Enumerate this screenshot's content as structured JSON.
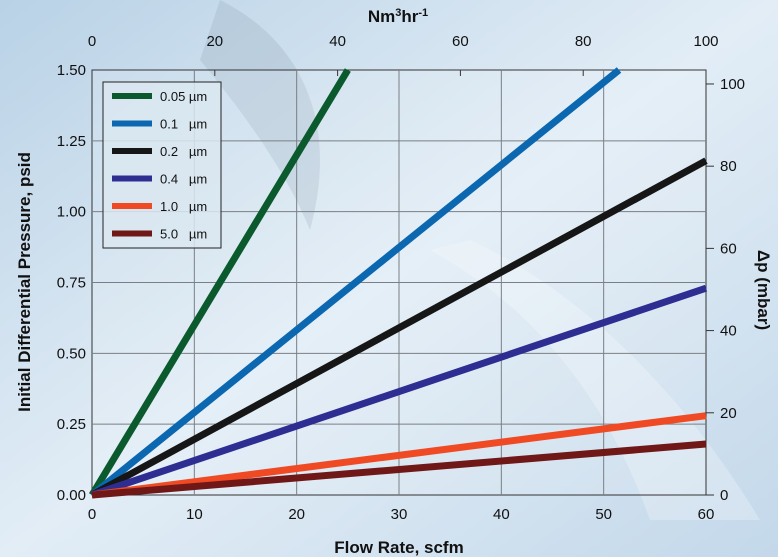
{
  "chart_data": {
    "type": "line",
    "xlabel": "Flow Rate, scfm",
    "ylabel": "Initial Differential Pressure, psid",
    "top_axis_label": {
      "base": "Nm",
      "sup1": "3",
      "mid": "hr",
      "sup2": "-1"
    },
    "right_axis_label": "Δp (mbar)",
    "xlim": [
      0,
      60
    ],
    "ylim": [
      0,
      1.5
    ],
    "x_ticks": [
      "0",
      "10",
      "20",
      "30",
      "40",
      "50",
      "60"
    ],
    "y_ticks": [
      "0.00",
      "0.25",
      "0.50",
      "0.75",
      "1.00",
      "1.25",
      "1.50"
    ],
    "top_ticks": [
      "0",
      "20",
      "40",
      "60",
      "80",
      "100"
    ],
    "top_xlim": [
      0,
      100
    ],
    "right_ticks": [
      "0",
      "20",
      "40",
      "60",
      "80",
      "100"
    ],
    "right_ylim": [
      0,
      103.4
    ],
    "grid": true,
    "legend_position": "top-left",
    "series": [
      {
        "name": "0.05 µm",
        "color": "#0a5a2e",
        "x": [
          0,
          25
        ],
        "y": [
          0,
          1.5
        ]
      },
      {
        "name": "0.1   µm",
        "color": "#0a67b0",
        "x": [
          0,
          51.5
        ],
        "y": [
          0,
          1.5
        ]
      },
      {
        "name": "0.2   µm",
        "color": "#161616",
        "x": [
          0,
          60
        ],
        "y": [
          0,
          1.18
        ]
      },
      {
        "name": "0.4   µm",
        "color": "#2e2e92",
        "x": [
          0,
          60
        ],
        "y": [
          0,
          0.73
        ]
      },
      {
        "name": "1.0   µm",
        "color": "#f04a24",
        "x": [
          0,
          60
        ],
        "y": [
          0,
          0.28
        ]
      },
      {
        "name": "5.0   µm",
        "color": "#701818",
        "x": [
          0,
          60
        ],
        "y": [
          0,
          0.18
        ]
      }
    ]
  }
}
